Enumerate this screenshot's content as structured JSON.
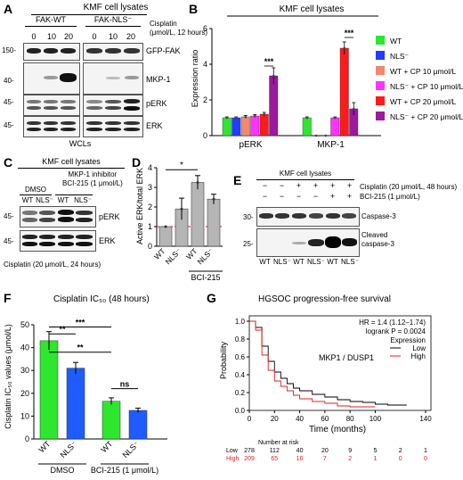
{
  "panelA": {
    "letter": "A",
    "title": "KMF cell lysates",
    "groups": [
      "FAK-WT",
      "FAK-NLS⁻"
    ],
    "cond_label": "Cisplatin\n(μmol/L, 12 hours)",
    "doses": [
      "0",
      "10",
      "20",
      "0",
      "10",
      "20"
    ],
    "rows": [
      {
        "mw": "150-",
        "label": "GFP-FAK"
      },
      {
        "mw": "40-",
        "label": "MKP-1"
      },
      {
        "mw": "45-",
        "label": "pERK"
      },
      {
        "mw": "45-",
        "label": "ERK"
      }
    ],
    "footer": "WCLs"
  },
  "panelB": {
    "letter": "B",
    "title": "KMF cell lysates",
    "legend": [
      {
        "name": "WT",
        "color": "#2ee62e"
      },
      {
        "name": "NLS⁻",
        "color": "#1f3cff"
      },
      {
        "name": "WT + CP 10 μmol/L",
        "color": "#f08a6e"
      },
      {
        "name": "NLS⁻ + CP 10 μmol/L",
        "color": "#ff33ff"
      },
      {
        "name": "WT + CP 20 μmol/L",
        "color": "#ff1a1a"
      },
      {
        "name": "NLS⁻ + CP 20 μmol/L",
        "color": "#9b1a9b"
      }
    ],
    "sig": [
      "***",
      "***"
    ]
  },
  "chart_data": {
    "type": "bar",
    "categories": [
      "pERK",
      "MKP-1"
    ],
    "series": [
      {
        "name": "WT",
        "values": [
          1.0,
          1.0
        ]
      },
      {
        "name": "NLS⁻",
        "values": [
          1.0,
          0.0
        ]
      },
      {
        "name": "WT + CP 10 μmol/L",
        "values": [
          1.05,
          0.0
        ]
      },
      {
        "name": "NLS⁻ + CP 10 μmol/L",
        "values": [
          1.1,
          1.0
        ]
      },
      {
        "name": "WT + CP 20 μmol/L",
        "values": [
          1.2,
          4.9
        ]
      },
      {
        "name": "NLS⁻ + CP 20 μmol/L",
        "values": [
          3.35,
          1.5
        ]
      }
    ],
    "errors": [
      [
        0.05,
        0.05
      ],
      [
        0.05,
        0.0
      ],
      [
        0.08,
        0.0
      ],
      [
        0.08,
        0.05
      ],
      [
        0.1,
        0.35
      ],
      [
        0.45,
        0.35
      ]
    ],
    "xlabel": "",
    "ylabel": "Expression ratio",
    "ylim": [
      0,
      6
    ],
    "yticks": [
      "0",
      "2",
      "4",
      "6"
    ]
  },
  "panelC": {
    "letter": "C",
    "title": "KMF cell lysates",
    "dmso": "DMSO",
    "inhibitor": "MKP-1 inhibitor\nBCI-215 (1 μmol/L)",
    "lanes": [
      "WT",
      "NLS⁻",
      "WT",
      "NLS⁻"
    ],
    "rows": [
      {
        "mw": "45-",
        "label": "pERK"
      },
      {
        "mw": "45-",
        "label": "ERK"
      }
    ],
    "footer": "Cisplatin (20 μmol/L, 24 hours)"
  },
  "panelD": {
    "letter": "D",
    "ylabel": "Active ERK/total ERK",
    "categories": [
      "WT",
      "NLS⁻",
      "WT",
      "NLS⁻"
    ],
    "values": [
      1.0,
      1.9,
      3.25,
      2.4
    ],
    "errors": [
      0.0,
      0.55,
      0.35,
      0.25
    ],
    "yticks": [
      "0",
      "1",
      "2",
      "3",
      "4"
    ],
    "ylim": [
      0,
      4
    ],
    "group": "BCI-215",
    "sig": "*"
  },
  "panelE": {
    "letter": "E",
    "title": "KMF cell lysates",
    "cis_label": "Cisplatin (20 μmol/L, 48 hours)",
    "bci_label": "BCI-215 (1 μmol/L)",
    "cis_signs": [
      "−",
      "−",
      "+",
      "+",
      "+",
      "+"
    ],
    "bci_signs": [
      "−",
      "−",
      "−",
      "−",
      "+",
      "+"
    ],
    "lanes": [
      "WT",
      "NLS⁻",
      "WT",
      "NLS⁻",
      "WT",
      "NLS⁻"
    ],
    "rows": [
      {
        "mw": "30-",
        "label": "Caspase-3"
      },
      {
        "mw": "25-",
        "label": "Cleaved\ncaspase-3"
      }
    ]
  },
  "panelF": {
    "letter": "F",
    "title": "Cisplatin IC₅₀ (48 hours)",
    "ylabel": "Cisplatin IC₅₀ values (μmol/L)",
    "categories": [
      "WT",
      "NLS⁻",
      "WT",
      "NLS⁻"
    ],
    "values": [
      43,
      31,
      16.5,
      12.5
    ],
    "errors": [
      4,
      2.5,
      1.5,
      1
    ],
    "colors": [
      "#2ee62e",
      "#1f5cff",
      "#2ee62e",
      "#1f5cff"
    ],
    "yticks": [
      "0",
      "10",
      "20",
      "30",
      "40",
      "50"
    ],
    "ylim": [
      0,
      50
    ],
    "groups": [
      "DMSO",
      "BCI-215 (1 μmol/L)"
    ],
    "sig": [
      "***",
      "**",
      "**",
      "ns"
    ]
  },
  "panelG": {
    "letter": "G",
    "title": "HGSOC progression-free survival",
    "hr": "HR = 1.4 (1.12–1.74)",
    "logrank": "logrank P = 0.0024",
    "expression": "Expression",
    "gene": "MKP1 / DUSP1",
    "legend": [
      {
        "name": "Low",
        "color": "#000000"
      },
      {
        "name": "High",
        "color": "#e02020"
      }
    ],
    "ylabel": "Probability",
    "xlabel": "Time (months)",
    "xticks": [
      "0",
      "20",
      "40",
      "60",
      "80",
      "100",
      "140"
    ],
    "xtick_vals": [
      0,
      20,
      40,
      60,
      80,
      100,
      140
    ],
    "yticks": [
      "0.0",
      "0.2",
      "0.4",
      "0.6",
      "0.8",
      "1.0"
    ],
    "risk_title": "Number at risk",
    "risk_low_label": "Low",
    "risk_high_label": "High",
    "risk_low": [
      "278",
      "112",
      "40",
      "20",
      "9",
      "5",
      "2",
      "1"
    ],
    "risk_high": [
      "209",
      "65",
      "16",
      "7",
      "2",
      "1",
      "0",
      "0"
    ],
    "risk_x": [
      0,
      20,
      40,
      60,
      80,
      100,
      120,
      140
    ],
    "curves": {
      "low": [
        [
          0,
          1.0
        ],
        [
          5,
          0.93
        ],
        [
          10,
          0.72
        ],
        [
          15,
          0.55
        ],
        [
          20,
          0.43
        ],
        [
          25,
          0.36
        ],
        [
          30,
          0.3
        ],
        [
          35,
          0.25
        ],
        [
          40,
          0.22
        ],
        [
          50,
          0.18
        ],
        [
          60,
          0.15
        ],
        [
          70,
          0.12
        ],
        [
          80,
          0.1
        ],
        [
          90,
          0.09
        ],
        [
          100,
          0.07
        ],
        [
          110,
          0.06
        ],
        [
          125,
          0.06
        ]
      ],
      "high": [
        [
          0,
          1.0
        ],
        [
          5,
          0.9
        ],
        [
          10,
          0.62
        ],
        [
          15,
          0.45
        ],
        [
          20,
          0.33
        ],
        [
          25,
          0.27
        ],
        [
          30,
          0.22
        ],
        [
          35,
          0.17
        ],
        [
          40,
          0.13
        ],
        [
          50,
          0.1
        ],
        [
          60,
          0.08
        ],
        [
          70,
          0.05
        ],
        [
          80,
          0.04
        ],
        [
          90,
          0.04
        ],
        [
          100,
          0.04
        ]
      ]
    }
  }
}
